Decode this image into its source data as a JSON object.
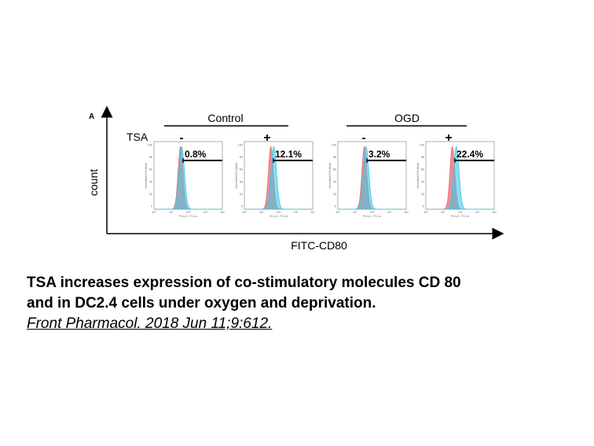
{
  "chart_data": {
    "type": "histogram",
    "panel_label": "A",
    "ylabel": "count",
    "xlabel": "FITC-CD80",
    "row_label": "TSA",
    "groups": [
      "Control",
      "OGD"
    ],
    "treatments": [
      "-",
      "+",
      "-",
      "+"
    ],
    "percentages": [
      "0.8%",
      "12.1%",
      "3.2%",
      "22.4%"
    ],
    "panel_groups": [
      "Control",
      "Control",
      "OGD",
      "OGD"
    ],
    "y_ticks": [
      "100",
      "80",
      "60",
      "40",
      "20",
      "0"
    ],
    "x_ticks": [
      "10⁰",
      "10¹",
      "10²",
      "10³",
      "10⁴"
    ],
    "inner_ylabel": "Normalized To Mode",
    "inner_xlabel": "FL1-A :: FL1-A",
    "series": [
      {
        "name": "",
        "color": "#e8696f",
        "peak_log": [
          1.55,
          1.55,
          1.55,
          1.55
        ]
      },
      {
        "name": "",
        "color": "#40c6e6",
        "peak_log": [
          1.62,
          1.72,
          1.65,
          1.78
        ]
      }
    ],
    "colors": {
      "red": "#e8696f",
      "cyan": "#40c6e6",
      "overlap": "#8a8ea8"
    }
  },
  "caption": {
    "line1": "TSA increases expression of co-stimulatory molecules CD 80",
    "line2": "and in DC2.4 cells under oxygen and deprivation.",
    "citation": "Front Pharmacol. 2018 Jun 11;9:612."
  }
}
